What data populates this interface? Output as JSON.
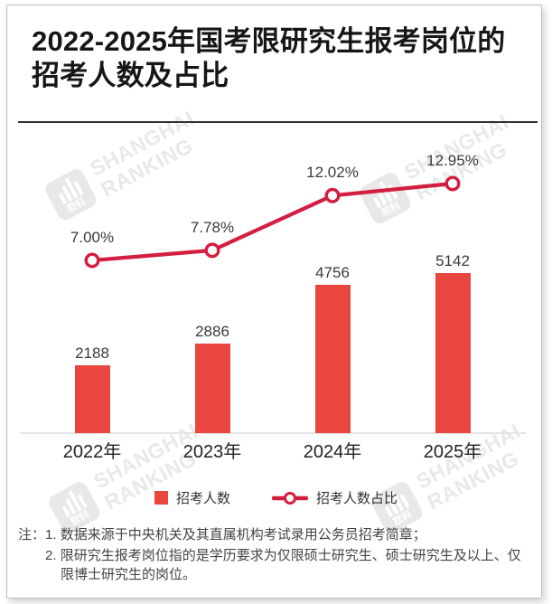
{
  "header": {
    "title_line1": "2022-2025年国考限研究生报考岗位的",
    "title_line2": "招考人数及占比"
  },
  "watermark": {
    "brand_line1": "SHANGHAI",
    "brand_line2": "RANKING",
    "logo_text": "软科"
  },
  "chart_data": {
    "type": "bar",
    "subtype": "combo-bar-line",
    "title": "2022-2025年国考限研究生报考岗位的招考人数及占比",
    "categories": [
      "2022年",
      "2023年",
      "2024年",
      "2025年"
    ],
    "series": [
      {
        "name": "招考人数",
        "type": "bar",
        "values": [
          2188,
          2886,
          4756,
          5142
        ],
        "color": "#E8463E"
      },
      {
        "name": "招考人数占比",
        "type": "line",
        "values": [
          7.0,
          7.78,
          12.02,
          12.95
        ],
        "unit": "%",
        "color": "#D31E40"
      }
    ],
    "bar_value_labels": [
      "2188",
      "2886",
      "4756",
      "5142"
    ],
    "line_value_labels": [
      "7.00%",
      "7.78%",
      "12.02%",
      "12.95%"
    ],
    "xlabel": "",
    "ylabel": "",
    "grid": false,
    "legend_position": "bottom"
  },
  "legend": {
    "bar_label": "招考人数",
    "line_label": "招考人数占比"
  },
  "notes": {
    "prefix": "注：",
    "items": [
      "1. 数据来源于中央机关及其直属机构考试录用公务员招考简章；",
      "2. 限研究生报考岗位指的是学历要求为仅限硕士研究生、硕士研究生及以上、仅限博士研究生的岗位。"
    ]
  }
}
